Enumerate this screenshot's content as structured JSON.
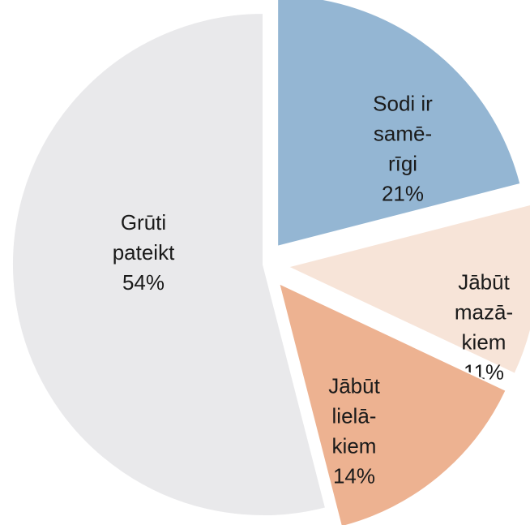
{
  "chart_data": {
    "type": "pie",
    "categories": [
      [
        "Sodi ir",
        "samē-",
        "rīgi"
      ],
      [
        "Jābūt",
        "mazā-",
        "kiem"
      ],
      [
        "Jābūt",
        "lielā-",
        "kiem"
      ],
      [
        "Grūti",
        "pateikt"
      ]
    ],
    "values": [
      21,
      11,
      14,
      54
    ],
    "value_labels": [
      "21%",
      "11%",
      "14%",
      "54%"
    ],
    "colors": [
      "#94b6d3",
      "#f7e4d8",
      "#edb291",
      "#e9e9eb"
    ]
  }
}
